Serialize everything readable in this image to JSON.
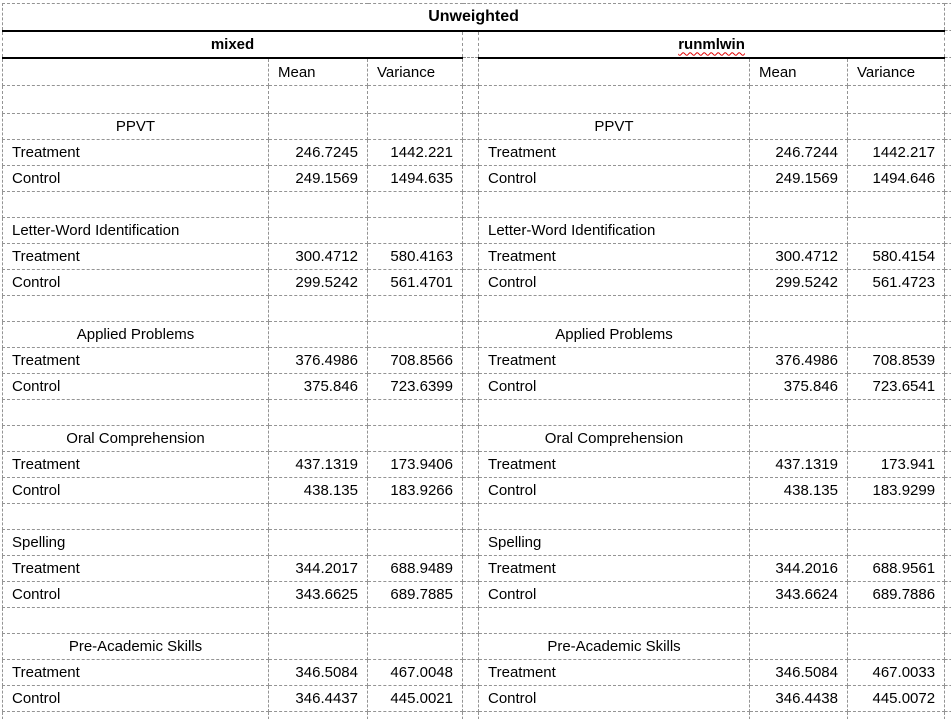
{
  "sheet": {
    "title": "Unweighted",
    "column_headers": [
      "Mean",
      "Variance"
    ],
    "row_labels": [
      "Treatment",
      "Control"
    ],
    "panels": [
      {
        "name": "mixed",
        "spellcheck_flagged": false,
        "groups": [
          {
            "label": "PPVT",
            "align": "center",
            "rows": [
              {
                "label": "Treatment",
                "mean": "246.7245",
                "variance": "1442.221"
              },
              {
                "label": "Control",
                "mean": "249.1569",
                "variance": "1494.635"
              }
            ]
          },
          {
            "label": "Letter-Word Identification",
            "align": "left",
            "rows": [
              {
                "label": "Treatment",
                "mean": "300.4712",
                "variance": "580.4163"
              },
              {
                "label": "Control",
                "mean": "299.5242",
                "variance": "561.4701"
              }
            ]
          },
          {
            "label": "Applied Problems",
            "align": "center",
            "rows": [
              {
                "label": "Treatment",
                "mean": "376.4986",
                "variance": "708.8566"
              },
              {
                "label": "Control",
                "mean": "375.846",
                "variance": "723.6399"
              }
            ]
          },
          {
            "label": "Oral Comprehension",
            "align": "center",
            "rows": [
              {
                "label": "Treatment",
                "mean": "437.1319",
                "variance": "173.9406"
              },
              {
                "label": "Control",
                "mean": "438.135",
                "variance": "183.9266"
              }
            ]
          },
          {
            "label": "Spelling",
            "align": "left",
            "rows": [
              {
                "label": "Treatment",
                "mean": "344.2017",
                "variance": "688.9489"
              },
              {
                "label": "Control",
                "mean": "343.6625",
                "variance": "689.7885"
              }
            ]
          },
          {
            "label": "Pre-Academic Skills",
            "align": "center",
            "rows": [
              {
                "label": "Treatment",
                "mean": "346.5084",
                "variance": "467.0048"
              },
              {
                "label": "Control",
                "mean": "346.4437",
                "variance": "445.0021"
              }
            ]
          }
        ]
      },
      {
        "name": "runmlwin",
        "spellcheck_flagged": true,
        "groups": [
          {
            "label": "PPVT",
            "align": "center",
            "rows": [
              {
                "label": "Treatment",
                "mean": "246.7244",
                "variance": "1442.217"
              },
              {
                "label": "Control",
                "mean": "249.1569",
                "variance": "1494.646"
              }
            ]
          },
          {
            "label": "Letter-Word Identification",
            "align": "left",
            "rows": [
              {
                "label": "Treatment",
                "mean": "300.4712",
                "variance": "580.4154"
              },
              {
                "label": "Control",
                "mean": "299.5242",
                "variance": "561.4723"
              }
            ]
          },
          {
            "label": "Applied Problems",
            "align": "center",
            "rows": [
              {
                "label": "Treatment",
                "mean": "376.4986",
                "variance": "708.8539"
              },
              {
                "label": "Control",
                "mean": "375.846",
                "variance": "723.6541"
              }
            ]
          },
          {
            "label": "Oral Comprehension",
            "align": "center",
            "rows": [
              {
                "label": "Treatment",
                "mean": "437.1319",
                "variance": "173.941"
              },
              {
                "label": "Control",
                "mean": "438.135",
                "variance": "183.9299"
              }
            ]
          },
          {
            "label": "Spelling",
            "align": "left",
            "rows": [
              {
                "label": "Treatment",
                "mean": "344.2016",
                "variance": "688.9561"
              },
              {
                "label": "Control",
                "mean": "343.6624",
                "variance": "689.7886"
              }
            ]
          },
          {
            "label": "Pre-Academic Skills",
            "align": "center",
            "rows": [
              {
                "label": "Treatment",
                "mean": "346.5084",
                "variance": "467.0033"
              },
              {
                "label": "Control",
                "mean": "346.4438",
                "variance": "445.0072"
              }
            ]
          }
        ]
      }
    ],
    "colors": {
      "gridline": "#949494",
      "solid_border": "#000000",
      "spellcheck_underline": "#e00000",
      "background": "#ffffff",
      "text": "#000000"
    }
  }
}
